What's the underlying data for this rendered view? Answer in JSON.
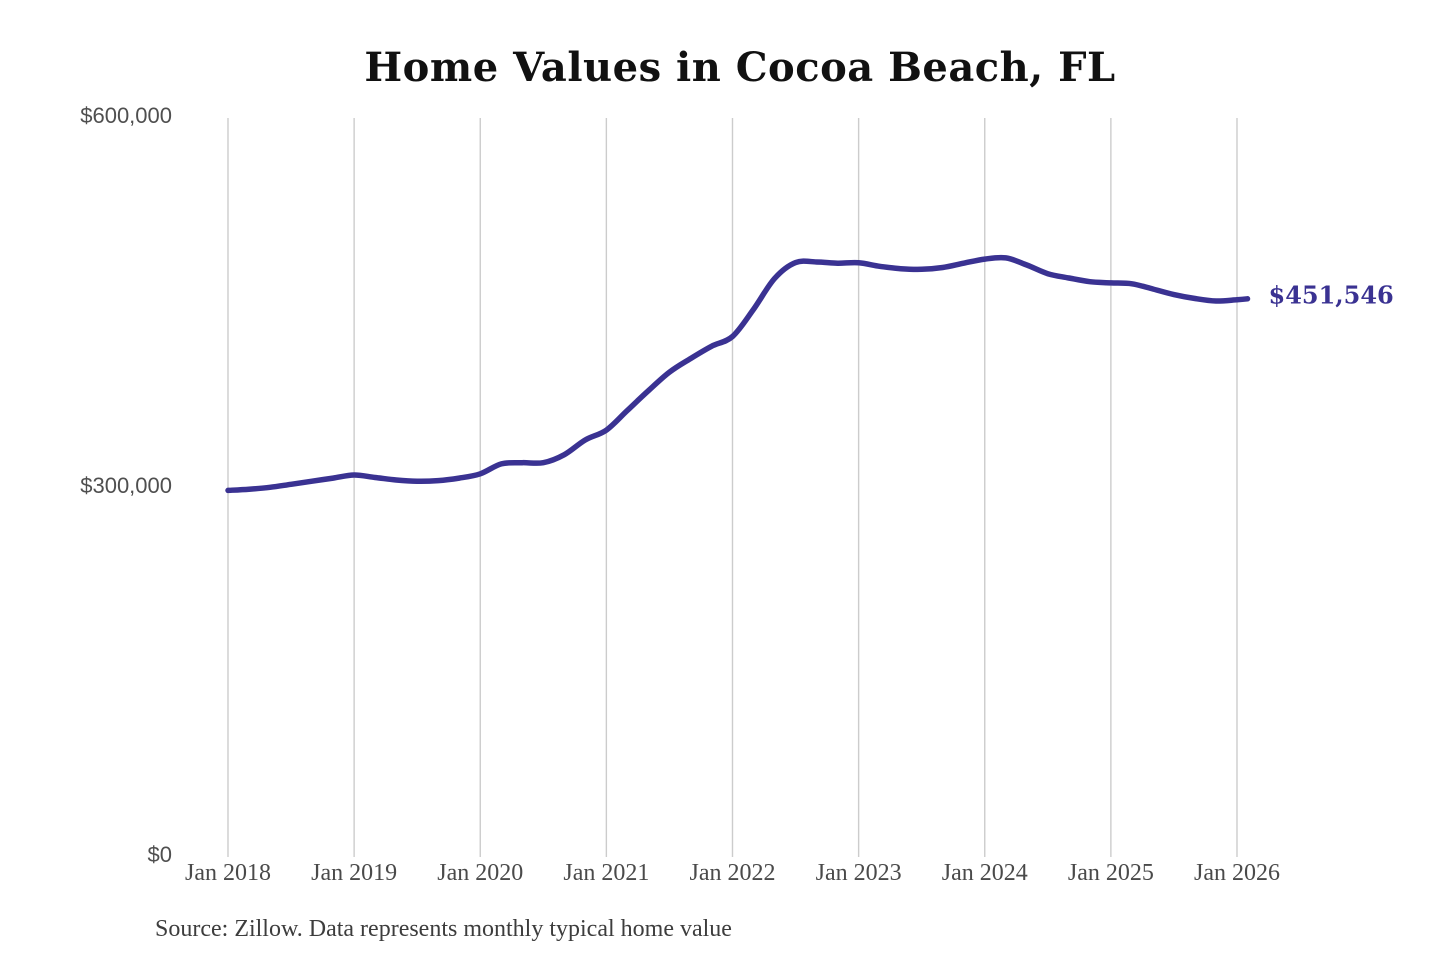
{
  "chart_data": {
    "type": "line",
    "title": "Home Values in Cocoa Beach, FL",
    "xlabel": "",
    "ylabel": "",
    "ylim": [
      0,
      600000
    ],
    "grid": "vertical-only",
    "legend": "none",
    "line_color": "#3a3292",
    "end_label": "$451,546",
    "end_value": 451546,
    "source_note": "Source: Zillow. Data represents monthly typical home value",
    "y_ticks": [
      {
        "value": 600000,
        "label": "$600,000"
      },
      {
        "value": 300000,
        "label": "$300,000"
      },
      {
        "value": 0,
        "label": "$0"
      }
    ],
    "x_ticks": [
      {
        "month": "2018-01",
        "label": "Jan 2018"
      },
      {
        "month": "2019-01",
        "label": "Jan 2019"
      },
      {
        "month": "2020-01",
        "label": "Jan 2020"
      },
      {
        "month": "2021-01",
        "label": "Jan 2021"
      },
      {
        "month": "2022-01",
        "label": "Jan 2022"
      },
      {
        "month": "2023-01",
        "label": "Jan 2023"
      },
      {
        "month": "2024-01",
        "label": "Jan 2024"
      },
      {
        "month": "2025-01",
        "label": "Jan 2025"
      },
      {
        "month": "2026-01",
        "label": "Jan 2026"
      }
    ],
    "series": [
      {
        "name": "Monthly typical home value",
        "points": [
          [
            "2018-01",
            296000
          ],
          [
            "2018-03",
            297000
          ],
          [
            "2018-05",
            298500
          ],
          [
            "2018-07",
            301000
          ],
          [
            "2018-09",
            303500
          ],
          [
            "2018-11",
            306000
          ],
          [
            "2019-01",
            308500
          ],
          [
            "2019-03",
            306500
          ],
          [
            "2019-05",
            304500
          ],
          [
            "2019-07",
            303500
          ],
          [
            "2019-09",
            304000
          ],
          [
            "2019-11",
            306000
          ],
          [
            "2020-01",
            309500
          ],
          [
            "2020-03",
            317500
          ],
          [
            "2020-05",
            318500
          ],
          [
            "2020-07",
            318500
          ],
          [
            "2020-09",
            325000
          ],
          [
            "2020-11",
            337000
          ],
          [
            "2021-01",
            345000
          ],
          [
            "2021-03",
            361000
          ],
          [
            "2021-05",
            377000
          ],
          [
            "2021-07",
            392000
          ],
          [
            "2021-09",
            403000
          ],
          [
            "2021-11",
            413000
          ],
          [
            "2022-01",
            421000
          ],
          [
            "2022-03",
            443000
          ],
          [
            "2022-05",
            468000
          ],
          [
            "2022-07",
            481000
          ],
          [
            "2022-09",
            481500
          ],
          [
            "2022-11",
            480500
          ],
          [
            "2023-01",
            480800
          ],
          [
            "2023-03",
            478000
          ],
          [
            "2023-05",
            476000
          ],
          [
            "2023-07",
            475500
          ],
          [
            "2023-09",
            477000
          ],
          [
            "2023-11",
            480500
          ],
          [
            "2024-01",
            483800
          ],
          [
            "2024-03",
            484800
          ],
          [
            "2024-05",
            479000
          ],
          [
            "2024-07",
            472000
          ],
          [
            "2024-09",
            468500
          ],
          [
            "2024-11",
            465500
          ],
          [
            "2025-01",
            464500
          ],
          [
            "2025-03",
            463800
          ],
          [
            "2025-05",
            459500
          ],
          [
            "2025-07",
            455000
          ],
          [
            "2025-09",
            451800
          ],
          [
            "2025-11",
            449800
          ],
          [
            "2026-01",
            450800
          ],
          [
            "2026-02",
            451546
          ]
        ]
      }
    ]
  }
}
